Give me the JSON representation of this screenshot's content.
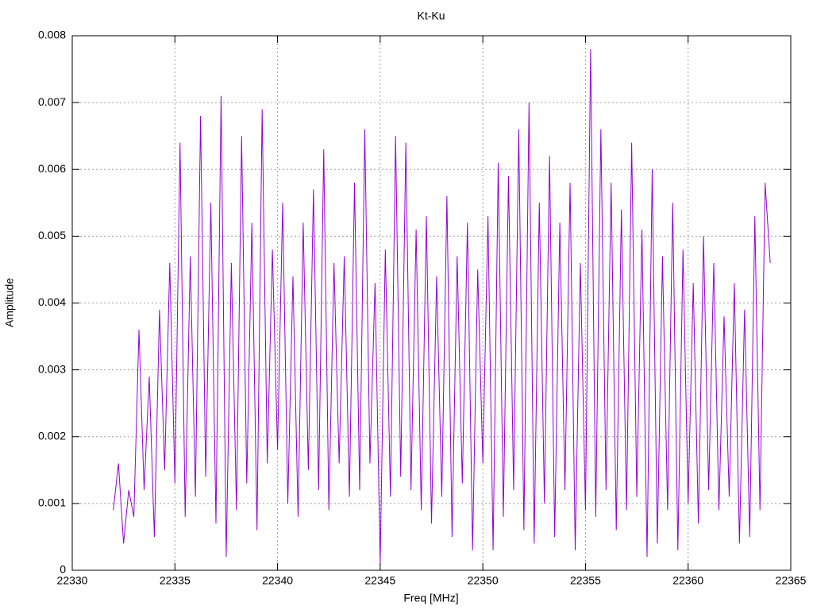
{
  "chart_data": {
    "type": "line",
    "title": "Kt-Ku",
    "x_label": "Freq [MHz]",
    "y_label": "Amplitude",
    "color": "#9400d3",
    "grid": true,
    "xlim": [
      22330,
      22365
    ],
    "xticks": [
      22330,
      22335,
      22340,
      22345,
      22350,
      22355,
      22360,
      22365
    ],
    "ylim": [
      0,
      0.008
    ],
    "yticks": [
      0,
      0.001,
      0.002,
      0.003,
      0.004,
      0.005,
      0.006,
      0.007,
      0.008
    ],
    "x": [
      22332,
      22332.25,
      22332.5,
      22332.75,
      22333,
      22333.25,
      22333.5,
      22333.75,
      22334,
      22334.25,
      22334.5,
      22334.75,
      22335,
      22335.25,
      22335.5,
      22335.75,
      22336,
      22336.25,
      22336.5,
      22336.75,
      22337,
      22337.25,
      22337.5,
      22337.75,
      22338,
      22338.25,
      22338.5,
      22338.75,
      22339,
      22339.25,
      22339.5,
      22339.75,
      22340,
      22340.25,
      22340.5,
      22340.75,
      22341,
      22341.25,
      22341.5,
      22341.75,
      22342,
      22342.25,
      22342.5,
      22342.75,
      22343,
      22343.25,
      22343.5,
      22343.75,
      22344,
      22344.25,
      22344.5,
      22344.75,
      22345,
      22345.25,
      22345.5,
      22345.75,
      22346,
      22346.25,
      22346.5,
      22346.75,
      22347,
      22347.25,
      22347.5,
      22347.75,
      22348,
      22348.25,
      22348.5,
      22348.75,
      22349,
      22349.25,
      22349.5,
      22349.75,
      22350,
      22350.25,
      22350.5,
      22350.75,
      22351,
      22351.25,
      22351.5,
      22351.75,
      22352,
      22352.25,
      22352.5,
      22352.75,
      22353,
      22353.25,
      22353.5,
      22353.75,
      22354,
      22354.25,
      22354.5,
      22354.75,
      22355,
      22355.25,
      22355.5,
      22355.75,
      22356,
      22356.25,
      22356.5,
      22356.75,
      22357,
      22357.25,
      22357.5,
      22357.75,
      22358,
      22358.25,
      22358.5,
      22358.75,
      22359,
      22359.25,
      22359.5,
      22359.75,
      22360,
      22360.25,
      22360.5,
      22360.75,
      22361,
      22361.25,
      22361.5,
      22361.75,
      22362,
      22362.25,
      22362.5,
      22362.75,
      22363,
      22363.25,
      22363.5,
      22363.75,
      22364
    ],
    "values": [
      0.0009,
      0.0016,
      0.0004,
      0.0012,
      0.0008,
      0.0036,
      0.0012,
      0.0029,
      0.0005,
      0.0039,
      0.0015,
      0.0046,
      0.0013,
      0.0064,
      0.0008,
      0.0047,
      0.0011,
      0.0068,
      0.0014,
      0.0055,
      0.0007,
      0.0071,
      0.0002,
      0.0046,
      0.0009,
      0.0065,
      0.0013,
      0.0052,
      0.0006,
      0.0069,
      0.0016,
      0.0048,
      0.0018,
      0.0055,
      0.001,
      0.0044,
      0.0008,
      0.0052,
      0.0015,
      0.0057,
      0.0012,
      0.0063,
      0.0009,
      0.0046,
      0.0016,
      0.0047,
      0.0011,
      0.0058,
      0.0012,
      0.0066,
      0.0016,
      0.0043,
      0.0001,
      0.0048,
      0.0011,
      0.0065,
      0.0014,
      0.0064,
      0.0012,
      0.0051,
      0.0009,
      0.0053,
      0.0007,
      0.0044,
      0.0011,
      0.0056,
      0.0005,
      0.0047,
      0.0013,
      0.0052,
      0.0003,
      0.0045,
      0.0016,
      0.0053,
      0.0003,
      0.0061,
      0.0008,
      0.0059,
      0.0012,
      0.0066,
      0.0006,
      0.007,
      0.0004,
      0.0055,
      0.001,
      0.0062,
      0.0005,
      0.0052,
      0.0012,
      0.0058,
      0.0003,
      0.0046,
      0.0009,
      0.0078,
      0.0008,
      0.0066,
      0.0012,
      0.0058,
      0.0006,
      0.0054,
      0.0009,
      0.0064,
      0.0011,
      0.0051,
      0.0002,
      0.006,
      0.0004,
      0.0047,
      0.0009,
      0.0055,
      0.0003,
      0.0048,
      0.001,
      0.0043,
      0.0007,
      0.005,
      0.0012,
      0.0046,
      0.0009,
      0.0038,
      0.0011,
      0.0043,
      0.0004,
      0.0039,
      0.0005,
      0.0053,
      0.0009,
      0.0058,
      0.0046
    ]
  }
}
